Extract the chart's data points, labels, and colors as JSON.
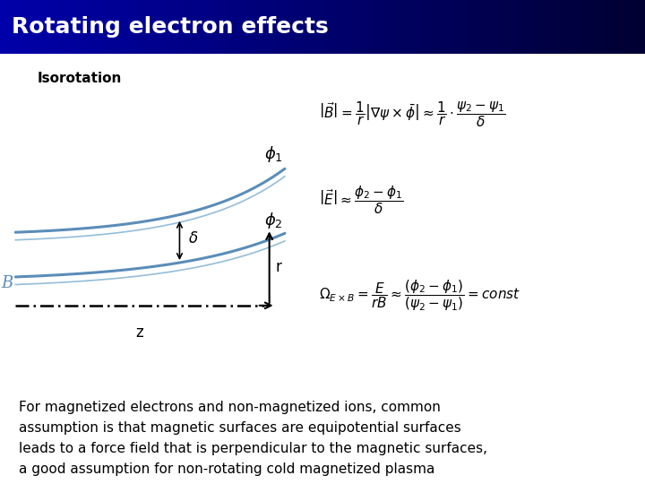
{
  "title": "Rotating electron effects",
  "title_bg_left": "#0000AA",
  "title_bg_right": "#000033",
  "title_text_color": "#FFFFFF",
  "subtitle": "Isorotation",
  "body_text": "For magnetized electrons and non-magnetized ions, common\nassumption is that magnetic surfaces are equipotential surfaces\nleads to a force field that is perpendicular to the magnetic surfaces,\na good assumption for non-rotating cold magnetized plasma",
  "curve_color": "#5b8db8",
  "curve_color2": "#7aadd0",
  "bg_color": "#FFFFFF"
}
